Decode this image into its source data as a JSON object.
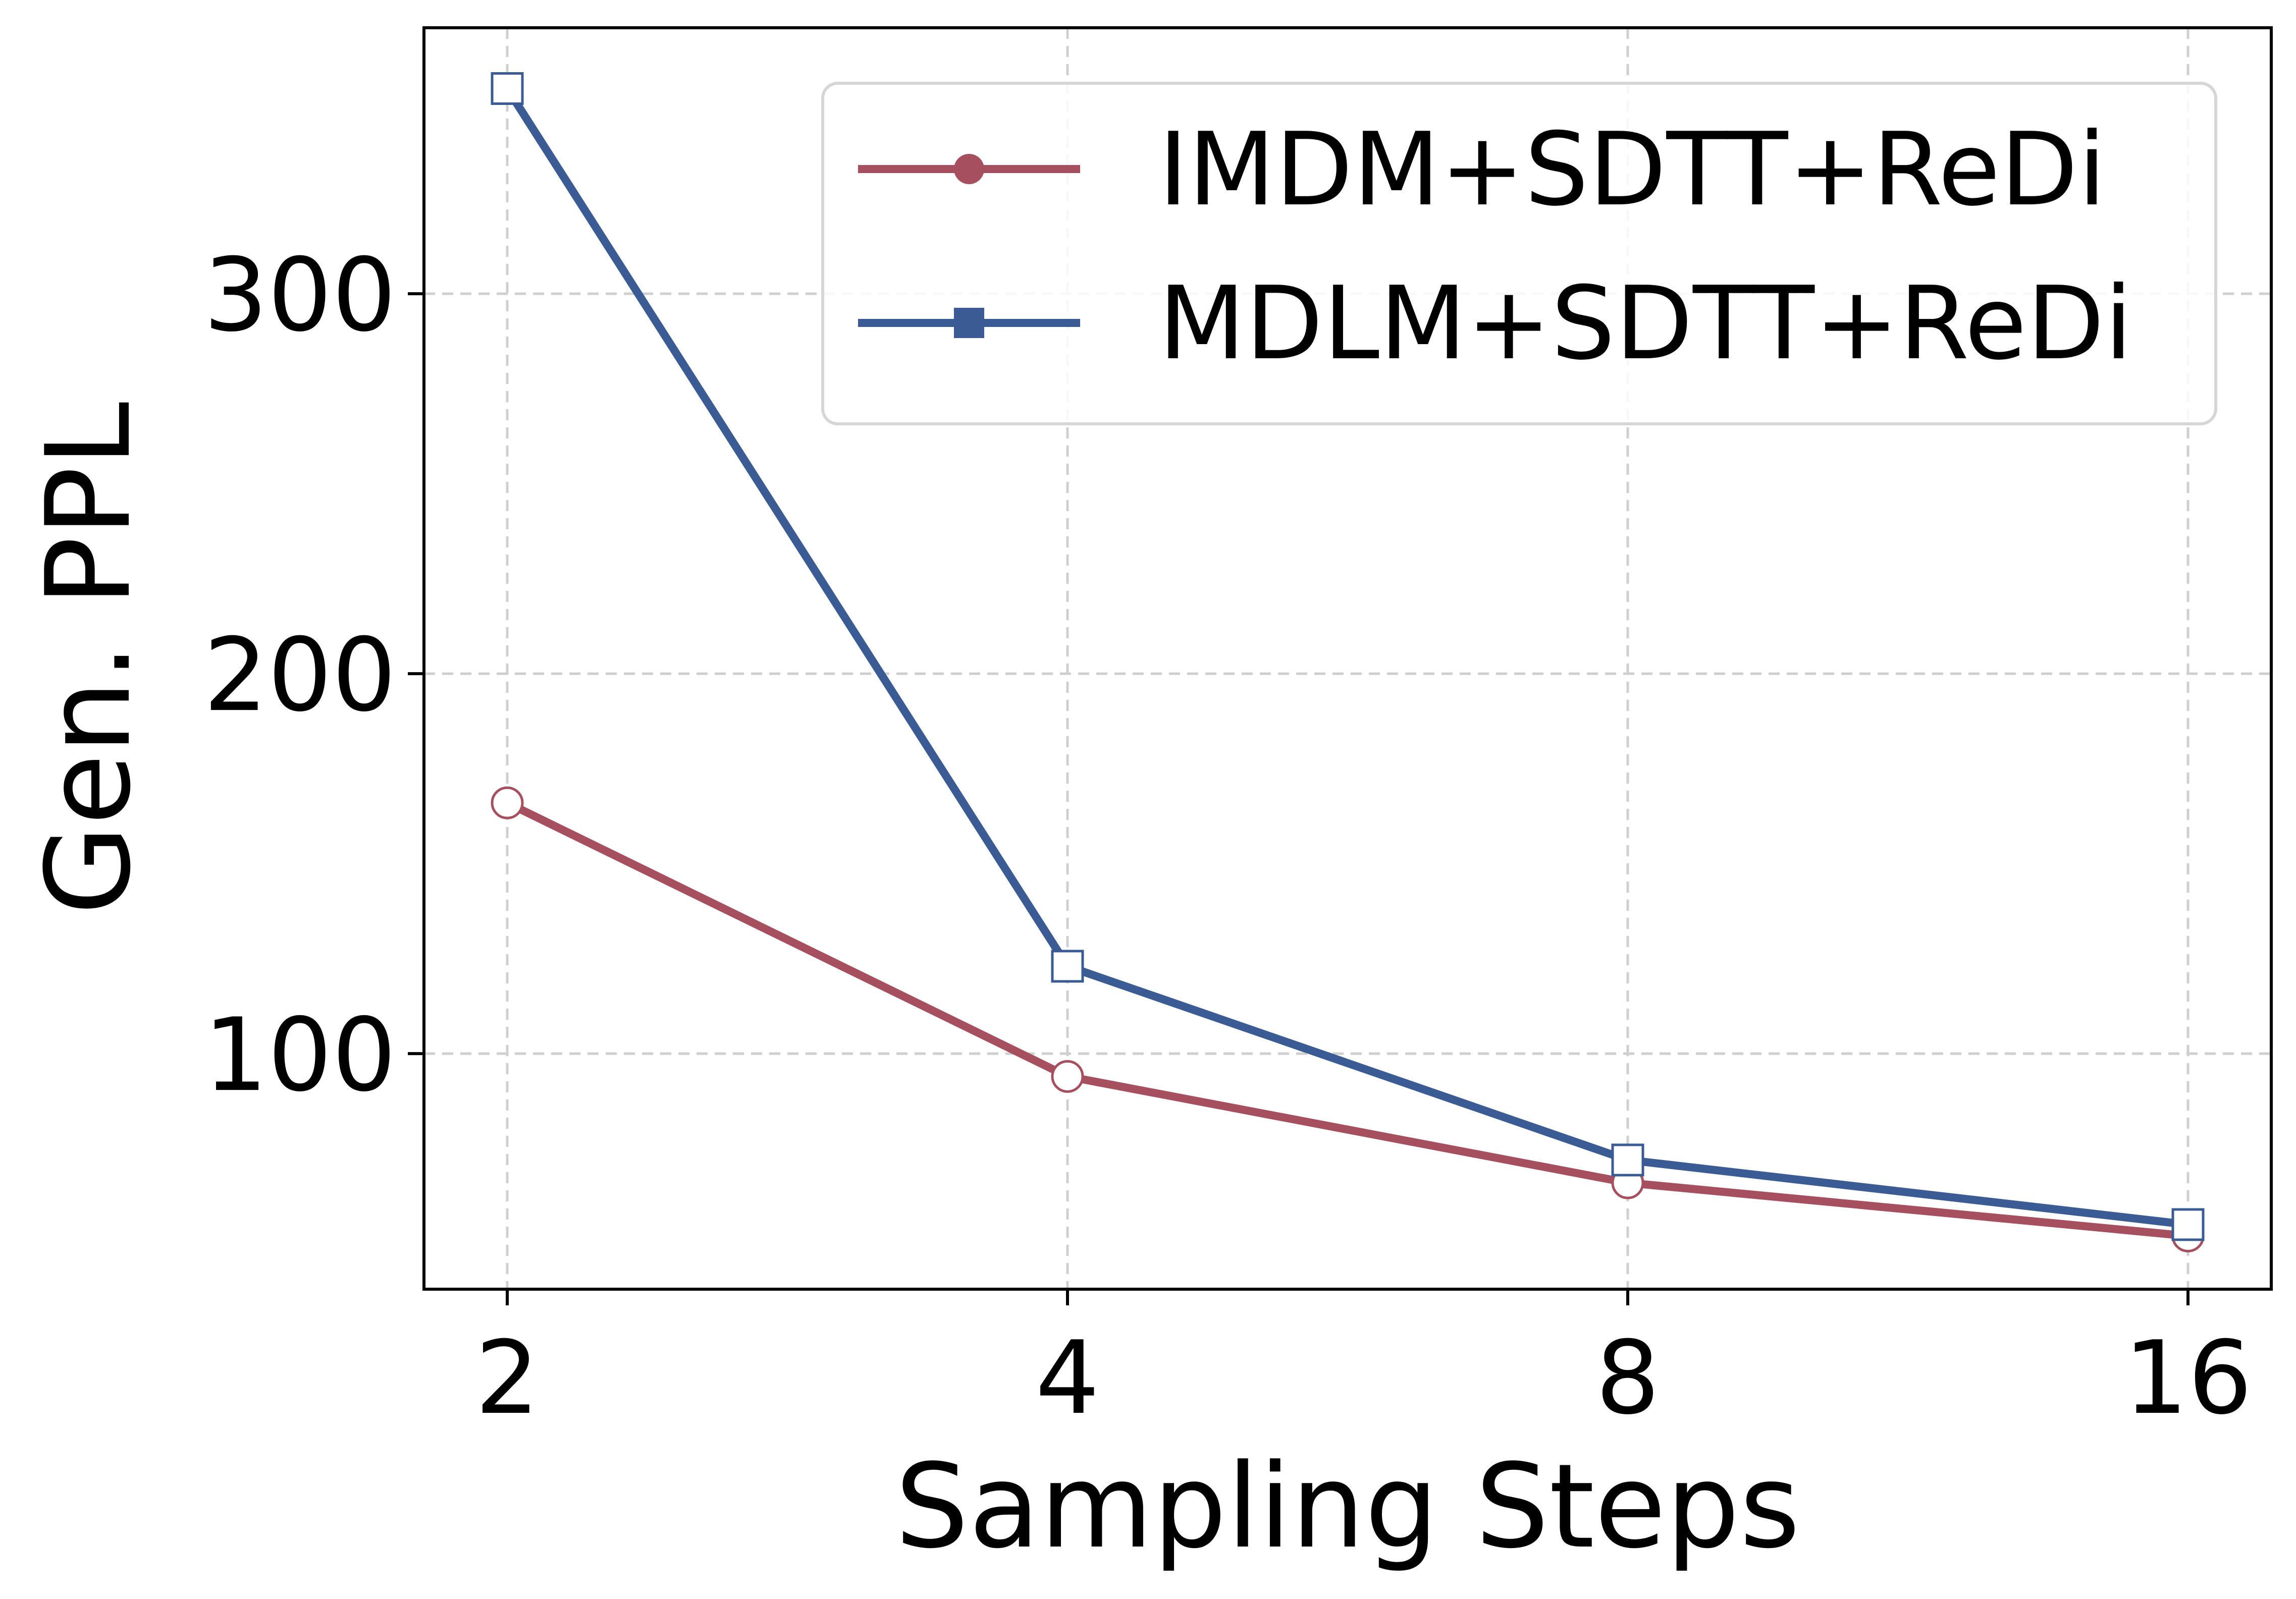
{
  "chart_data": {
    "type": "line",
    "x": [
      2,
      4,
      8,
      16
    ],
    "x_tick_labels": [
      "2",
      "4",
      "8",
      "16"
    ],
    "xscale": "log2",
    "xlabel": "Sampling Steps",
    "ylabel": "Gen. PPL",
    "ylim": [
      38,
      370
    ],
    "y_ticks": [
      100,
      200,
      300
    ],
    "y_tick_labels": [
      "100",
      "200",
      "300"
    ],
    "grid": true,
    "legend_position": "top-right",
    "series": [
      {
        "name": "IMDM+SDTT+ReDi",
        "values": [
          166,
          94,
          66,
          52
        ],
        "color": "#a54f5f",
        "marker": "circle"
      },
      {
        "name": "MDLM+SDTT+ReDi",
        "values": [
          354,
          123,
          72,
          55
        ],
        "color": "#3b5b94",
        "marker": "square"
      }
    ]
  }
}
